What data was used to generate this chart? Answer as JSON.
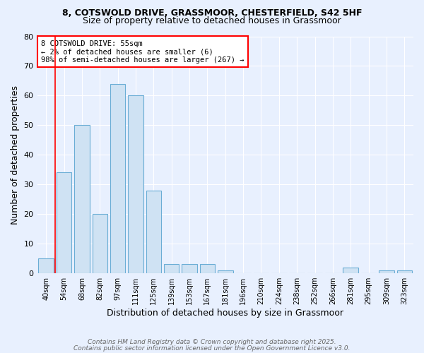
{
  "title1": "8, COTSWOLD DRIVE, GRASSMOOR, CHESTERFIELD, S42 5HF",
  "title2": "Size of property relative to detached houses in Grassmoor",
  "xlabel": "Distribution of detached houses by size in Grassmoor",
  "ylabel": "Number of detached properties",
  "footnote1": "Contains HM Land Registry data © Crown copyright and database right 2025.",
  "footnote2": "Contains public sector information licensed under the Open Government Licence v3.0.",
  "annotation_line1": "8 COTSWOLD DRIVE: 55sqm",
  "annotation_line2": "← 2% of detached houses are smaller (6)",
  "annotation_line3": "98% of semi-detached houses are larger (267) →",
  "bar_labels": [
    "40sqm",
    "54sqm",
    "68sqm",
    "82sqm",
    "97sqm",
    "111sqm",
    "125sqm",
    "139sqm",
    "153sqm",
    "167sqm",
    "181sqm",
    "196sqm",
    "210sqm",
    "224sqm",
    "238sqm",
    "252sqm",
    "266sqm",
    "281sqm",
    "295sqm",
    "309sqm",
    "323sqm"
  ],
  "bar_values": [
    5,
    34,
    50,
    20,
    64,
    60,
    28,
    3,
    3,
    3,
    1,
    0,
    0,
    0,
    0,
    0,
    0,
    2,
    0,
    1,
    1
  ],
  "bar_color": "#cfe2f3",
  "bar_edge_color": "#6aadd5",
  "red_line_x": 1.5,
  "ylim": [
    0,
    80
  ],
  "yticks": [
    0,
    10,
    20,
    30,
    40,
    50,
    60,
    70,
    80
  ],
  "bg_color": "#e8f0fe",
  "grid_color": "#ffffff",
  "title1_fontsize": 9,
  "title2_fontsize": 9,
  "xlabel_fontsize": 9,
  "ylabel_fontsize": 9
}
